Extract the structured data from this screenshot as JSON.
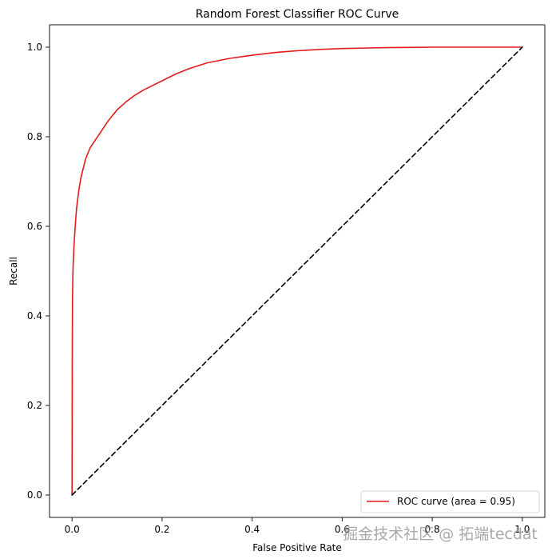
{
  "chart_data": {
    "type": "line",
    "title": "Random Forest Classifier ROC Curve",
    "xlabel": "False Positive Rate",
    "ylabel": "Recall",
    "xlim": [
      -0.05,
      1.05
    ],
    "ylim": [
      -0.05,
      1.05
    ],
    "xticks": [
      "0.0",
      "0.2",
      "0.4",
      "0.6",
      "0.8",
      "1.0"
    ],
    "yticks": [
      "0.0",
      "0.2",
      "0.4",
      "0.6",
      "0.8",
      "1.0"
    ],
    "grid": false,
    "legend_position": "lower-right",
    "series": [
      {
        "name": "ROC curve (area = 0.95)",
        "color": "#e41a1c",
        "style": "solid",
        "x": [
          0.0,
          0.0005,
          0.001,
          0.002,
          0.004,
          0.007,
          0.01,
          0.015,
          0.02,
          0.03,
          0.04,
          0.05,
          0.06,
          0.08,
          0.1,
          0.12,
          0.14,
          0.16,
          0.18,
          0.2,
          0.23,
          0.26,
          0.3,
          0.35,
          0.4,
          0.45,
          0.5,
          0.55,
          0.6,
          0.65,
          0.7,
          0.75,
          0.8,
          0.85,
          0.9,
          0.95,
          1.0
        ],
        "y": [
          0.0,
          0.3,
          0.44,
          0.5,
          0.55,
          0.6,
          0.64,
          0.68,
          0.71,
          0.75,
          0.775,
          0.79,
          0.805,
          0.835,
          0.86,
          0.878,
          0.893,
          0.905,
          0.915,
          0.925,
          0.94,
          0.952,
          0.965,
          0.975,
          0.982,
          0.988,
          0.992,
          0.995,
          0.997,
          0.998,
          0.999,
          0.9995,
          1.0,
          1.0,
          1.0,
          1.0,
          1.0
        ]
      },
      {
        "name": "",
        "color": "#000000",
        "style": "dashed",
        "x": [
          0.0,
          1.0
        ],
        "y": [
          0.0,
          1.0
        ]
      }
    ]
  },
  "watermark": "掘金技术社区 @ 拓端tecdat"
}
